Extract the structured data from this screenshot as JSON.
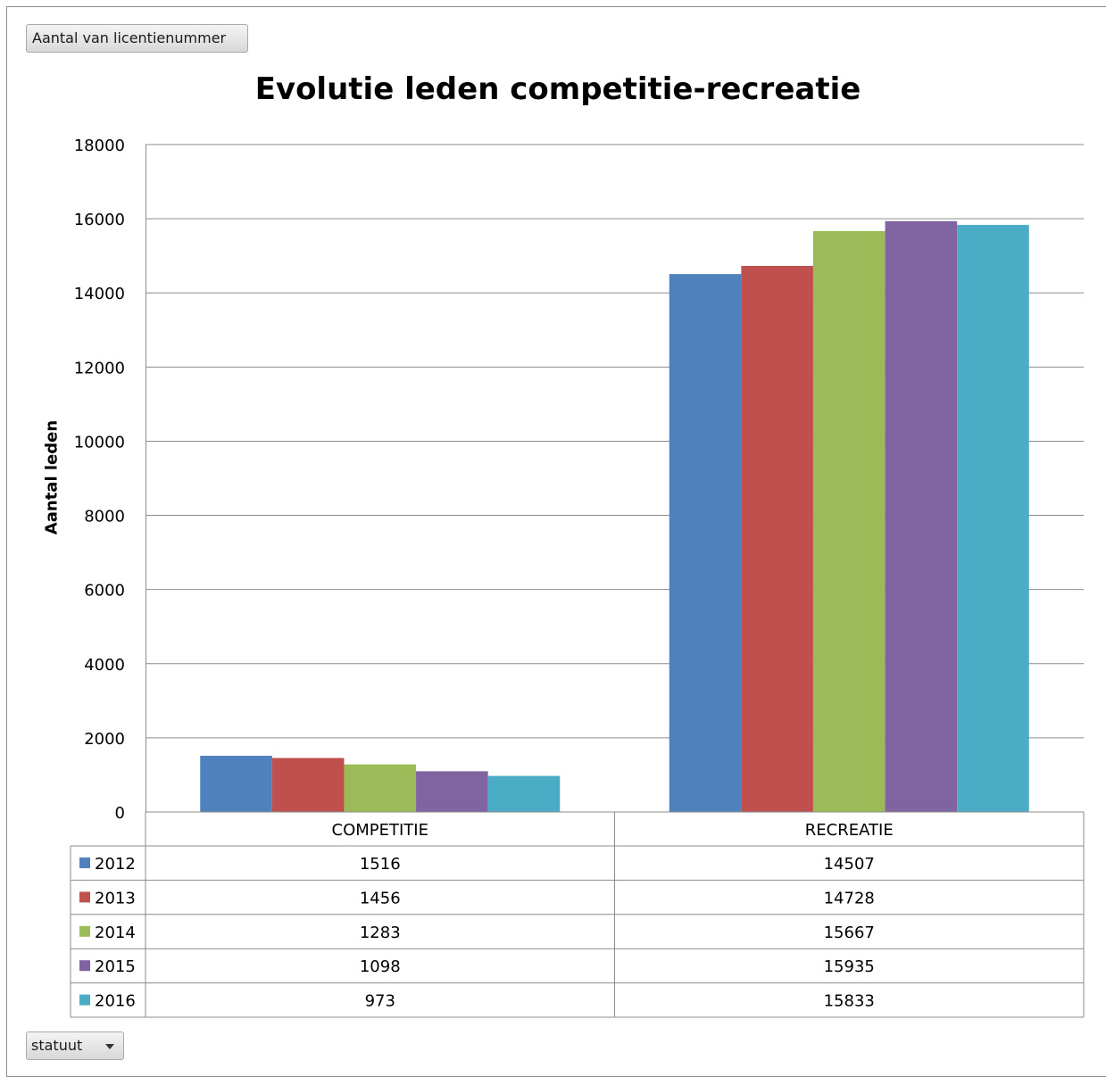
{
  "pivot": {
    "value_field": "Aantal van licentienummer",
    "filter_field": "statuut"
  },
  "chart_data": {
    "type": "bar",
    "title": "Evolutie leden competitie-recreatie",
    "ylabel": "Aantal leden",
    "xlabel": "",
    "ylim": [
      0,
      18000
    ],
    "yticks": [
      0,
      2000,
      4000,
      6000,
      8000,
      10000,
      12000,
      14000,
      16000,
      18000
    ],
    "categories": [
      "COMPETITIE",
      "RECREATIE"
    ],
    "grid": true,
    "legend": "data-table",
    "series": [
      {
        "name": "2012",
        "color": "#4f81bd",
        "values": [
          1516,
          14507
        ]
      },
      {
        "name": "2013",
        "color": "#c0504d",
        "values": [
          1456,
          14728
        ]
      },
      {
        "name": "2014",
        "color": "#9bbb59",
        "values": [
          1283,
          15667
        ]
      },
      {
        "name": "2015",
        "color": "#8064a2",
        "values": [
          1098,
          15935
        ]
      },
      {
        "name": "2016",
        "color": "#4bacc6",
        "values": [
          973,
          15833
        ]
      }
    ]
  }
}
